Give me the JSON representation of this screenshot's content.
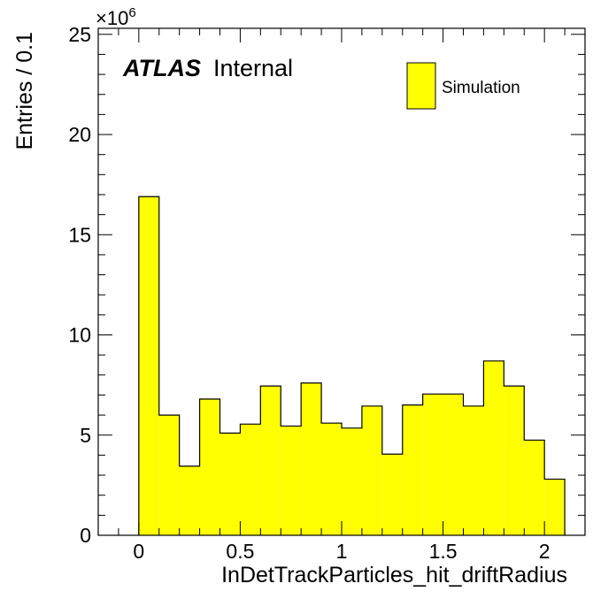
{
  "chart_data": {
    "type": "histogram",
    "title": "",
    "xlabel": "InDetTrackParticles_hit_driftRadius",
    "ylabel": "Entries / 0.1",
    "y_multiplier_label": "×10",
    "y_multiplier_exponent": "6",
    "xlim": [
      -0.2,
      2.2
    ],
    "ylim": [
      0,
      25.3
    ],
    "x_ticks": [
      0,
      0.5,
      1,
      1.5,
      2
    ],
    "x_tick_labels": [
      "0",
      "0.5",
      "1",
      "1.5",
      "2"
    ],
    "y_ticks": [
      0,
      5,
      10,
      15,
      20,
      25
    ],
    "y_tick_labels": [
      "0",
      "5",
      "10",
      "15",
      "20",
      "25"
    ],
    "bin_edges": [
      0,
      0.1,
      0.2,
      0.3,
      0.4,
      0.5,
      0.6,
      0.7,
      0.8,
      0.9,
      1.0,
      1.1,
      1.2,
      1.3,
      1.4,
      1.5,
      1.6,
      1.7,
      1.8,
      1.9,
      2.0,
      2.1
    ],
    "series": [
      {
        "name": "Simulation",
        "color": "#ffff00",
        "values": [
          16.9,
          6.0,
          3.45,
          6.8,
          5.1,
          5.55,
          7.45,
          5.45,
          7.6,
          5.6,
          5.35,
          6.45,
          4.05,
          6.5,
          7.05,
          7.05,
          6.45,
          8.7,
          7.45,
          4.75,
          2.8
        ]
      }
    ],
    "legend": {
      "placement": "top-right",
      "entries": [
        "Simulation"
      ]
    },
    "annotation": {
      "bold_italic": "ATLAS",
      "regular": "Internal"
    },
    "grid": false
  }
}
